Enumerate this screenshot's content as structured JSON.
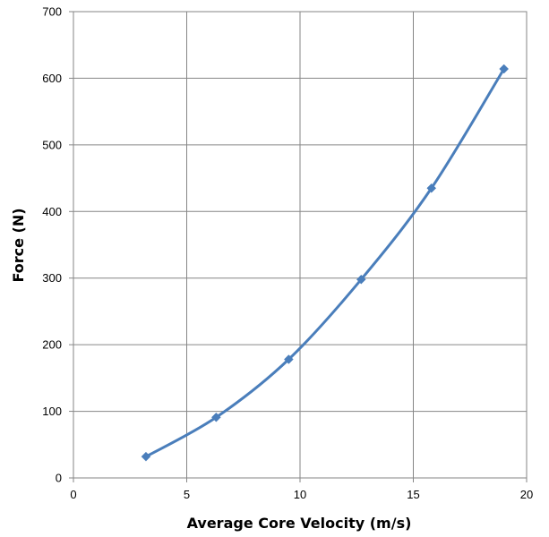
{
  "chart_data": {
    "type": "line",
    "title": "",
    "xlabel": "Average Core Velocity (m/s)",
    "ylabel": "Force (N)",
    "xlim": [
      0,
      20
    ],
    "ylim": [
      0,
      700
    ],
    "xticks": [
      0,
      5,
      10,
      15,
      20
    ],
    "yticks": [
      0,
      100,
      200,
      300,
      400,
      500,
      600,
      700
    ],
    "grid": true,
    "legend": "none",
    "marker": "diamond",
    "line_style": "smooth",
    "colors": {
      "series": "#4a7ebb",
      "grid": "#868686",
      "axis": "#868686"
    },
    "series": [
      {
        "x": [
          3.2,
          6.3,
          9.5,
          12.7,
          15.8,
          19.0
        ],
        "y": [
          32,
          91,
          178,
          298,
          435,
          614
        ]
      }
    ]
  }
}
